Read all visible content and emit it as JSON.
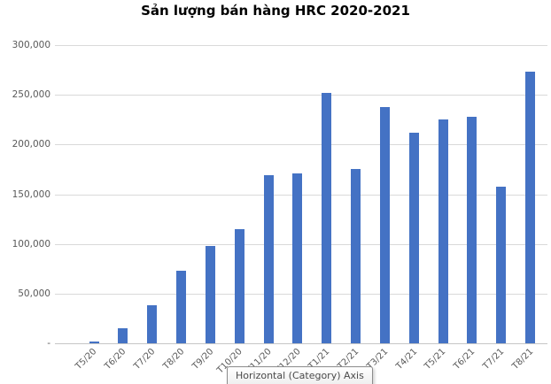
{
  "title": "Sản lượng bán hàng HRC 2020-2021",
  "tooltip": {
    "text": "Horizontal (Category) Axis"
  },
  "colors": {
    "bar": "#4472C4",
    "gridline": "#D9D9D9",
    "axis_line": "#C6C6C6",
    "tick_label": "#595959",
    "title": "#000000",
    "tooltip_border": "#8C8C8C",
    "tooltip_text": "#4A4A4A"
  },
  "chart_data": {
    "type": "bar",
    "title": "Sản lượng bán hàng HRC 2020-2021",
    "categories": [
      "T5/20",
      "T6/20",
      "T7/20",
      "T8/20",
      "T9/20",
      "T10/20",
      "T11/20",
      "T12/20",
      "T1/21",
      "T2/21",
      "T3/21",
      "T4/21",
      "T5/21",
      "T6/21",
      "T7/21",
      "T8/21"
    ],
    "values": [
      2000,
      15000,
      38000,
      73000,
      98000,
      115000,
      169000,
      171000,
      252000,
      175000,
      238000,
      212000,
      225000,
      228000,
      158000,
      273000
    ],
    "xlabel": "",
    "ylabel": "",
    "ylim": [
      0,
      300000
    ],
    "ytick_interval": 50000,
    "ytick_labels": [
      "-",
      "50,000",
      "100,000",
      "150,000",
      "200,000",
      "250,000",
      "300,000"
    ],
    "grid": true,
    "legend": false,
    "bar_color": "#4472C4"
  }
}
